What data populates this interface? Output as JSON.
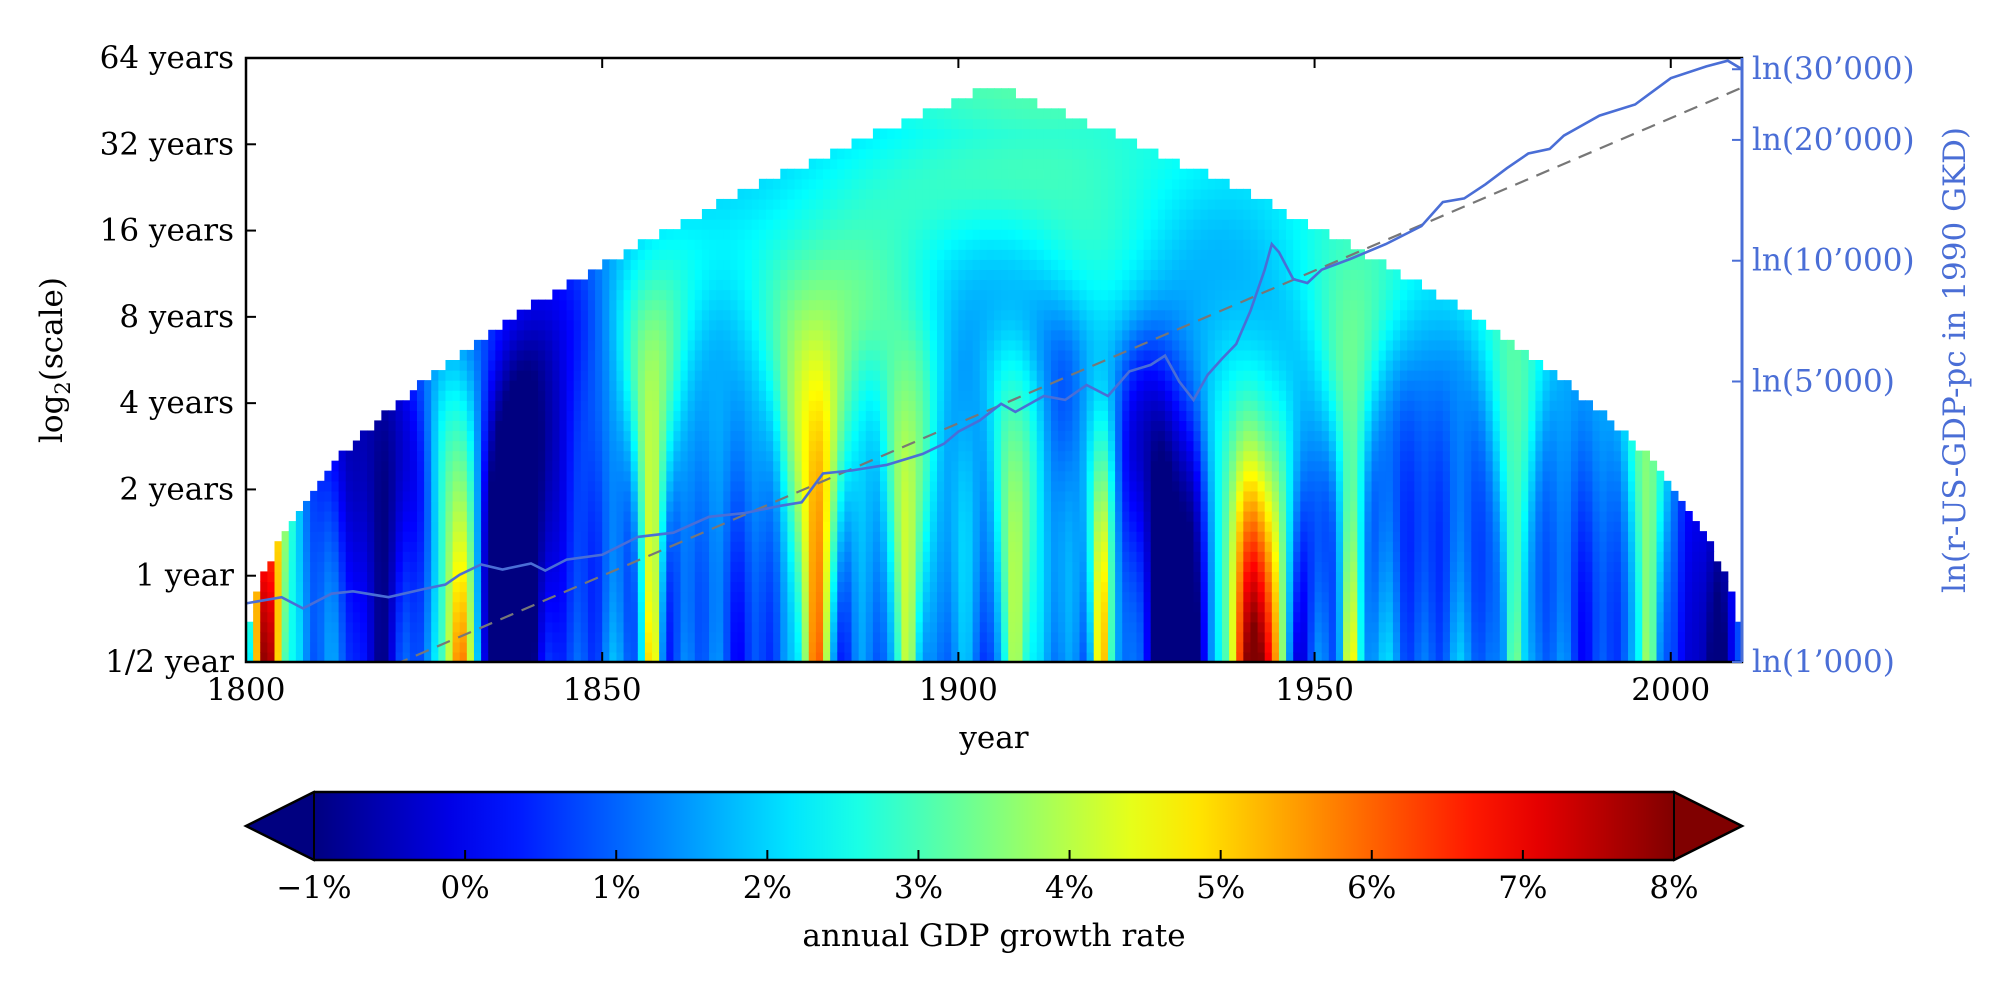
{
  "chart_data": {
    "type": "heatmap",
    "title": "",
    "xlabel": "year",
    "ylabel_main": "log",
    "ylabel_sub": "2",
    "ylabel_rest": "(scale)",
    "x_range": [
      1800,
      2010
    ],
    "x_ticks": [
      {
        "value": 1800,
        "label": "1800"
      },
      {
        "value": 1850,
        "label": "1850"
      },
      {
        "value": 1900,
        "label": "1900"
      },
      {
        "value": 1950,
        "label": "1950"
      },
      {
        "value": 2000,
        "label": "2000"
      }
    ],
    "y_scale": "log2",
    "y_range_years": [
      0.5,
      64
    ],
    "y_ticks": [
      {
        "value": 0.5,
        "label": "1/2 year"
      },
      {
        "value": 1,
        "label": "1 year"
      },
      {
        "value": 2,
        "label": "2 years"
      },
      {
        "value": 4,
        "label": "4 years"
      },
      {
        "value": 8,
        "label": "8 years"
      },
      {
        "value": 16,
        "label": "16 years"
      },
      {
        "value": 32,
        "label": "32 years"
      },
      {
        "value": 64,
        "label": "64 years"
      }
    ],
    "cone_of_influence": {
      "peak_year": 1906,
      "peak_scale_years": 50
    },
    "colorbar": {
      "label": "annual GDP growth rate",
      "range": [
        -1,
        8
      ],
      "extend": "both",
      "colormap": "jet",
      "ticks": [
        {
          "value": -1,
          "label": "−1%"
        },
        {
          "value": 0,
          "label": "0%"
        },
        {
          "value": 1,
          "label": "1%"
        },
        {
          "value": 2,
          "label": "2%"
        },
        {
          "value": 3,
          "label": "3%"
        },
        {
          "value": 4,
          "label": "4%"
        },
        {
          "value": 5,
          "label": "5%"
        },
        {
          "value": 6,
          "label": "6%"
        },
        {
          "value": 7,
          "label": "7%"
        },
        {
          "value": 8,
          "label": "8%"
        }
      ]
    },
    "secondary_axis": {
      "label": "ln(r-US-GDP-pc in 1990 GKD)",
      "color": "#4a6ed6",
      "scale": "ln",
      "range": [
        1000,
        32000
      ],
      "ticks": [
        {
          "value": 1000,
          "label": "ln(1’000)"
        },
        {
          "value": 5000,
          "label": "ln(5’000)"
        },
        {
          "value": 10000,
          "label": "ln(10’000)"
        },
        {
          "value": 20000,
          "label": "ln(20’000)"
        },
        {
          "value": 30000,
          "label": "ln(30’000)"
        }
      ]
    },
    "gdp_series": {
      "name": "",
      "color": "#4a6ed6",
      "points": [
        [
          1800,
          1400
        ],
        [
          1805,
          1450
        ],
        [
          1808,
          1360
        ],
        [
          1812,
          1480
        ],
        [
          1815,
          1500
        ],
        [
          1820,
          1450
        ],
        [
          1825,
          1520
        ],
        [
          1828,
          1560
        ],
        [
          1830,
          1650
        ],
        [
          1833,
          1750
        ],
        [
          1836,
          1700
        ],
        [
          1840,
          1760
        ],
        [
          1842,
          1690
        ],
        [
          1845,
          1800
        ],
        [
          1850,
          1850
        ],
        [
          1855,
          2050
        ],
        [
          1860,
          2100
        ],
        [
          1865,
          2300
        ],
        [
          1870,
          2350
        ],
        [
          1875,
          2450
        ],
        [
          1878,
          2500
        ],
        [
          1881,
          2950
        ],
        [
          1885,
          3000
        ],
        [
          1890,
          3100
        ],
        [
          1895,
          3300
        ],
        [
          1898,
          3500
        ],
        [
          1900,
          3750
        ],
        [
          1903,
          4000
        ],
        [
          1906,
          4400
        ],
        [
          1908,
          4200
        ],
        [
          1912,
          4600
        ],
        [
          1915,
          4500
        ],
        [
          1918,
          4900
        ],
        [
          1921,
          4600
        ],
        [
          1924,
          5300
        ],
        [
          1927,
          5500
        ],
        [
          1929,
          5800
        ],
        [
          1931,
          5000
        ],
        [
          1933,
          4500
        ],
        [
          1935,
          5200
        ],
        [
          1937,
          5700
        ],
        [
          1939,
          6200
        ],
        [
          1941,
          7500
        ],
        [
          1943,
          9500
        ],
        [
          1944,
          11000
        ],
        [
          1945,
          10500
        ],
        [
          1947,
          9000
        ],
        [
          1949,
          8800
        ],
        [
          1951,
          9500
        ],
        [
          1955,
          10100
        ],
        [
          1960,
          11000
        ],
        [
          1965,
          12200
        ],
        [
          1968,
          14000
        ],
        [
          1971,
          14300
        ],
        [
          1974,
          15500
        ],
        [
          1977,
          17000
        ],
        [
          1980,
          18500
        ],
        [
          1983,
          19000
        ],
        [
          1985,
          20500
        ],
        [
          1990,
          23000
        ],
        [
          1995,
          24500
        ],
        [
          2000,
          28500
        ],
        [
          2005,
          30500
        ],
        [
          2008,
          31500
        ],
        [
          2010,
          30000
        ]
      ]
    },
    "trend_line": {
      "start": [
        1809,
        800
      ],
      "end": [
        2010,
        27000
      ],
      "color": "#777777",
      "style": "dashed"
    }
  }
}
